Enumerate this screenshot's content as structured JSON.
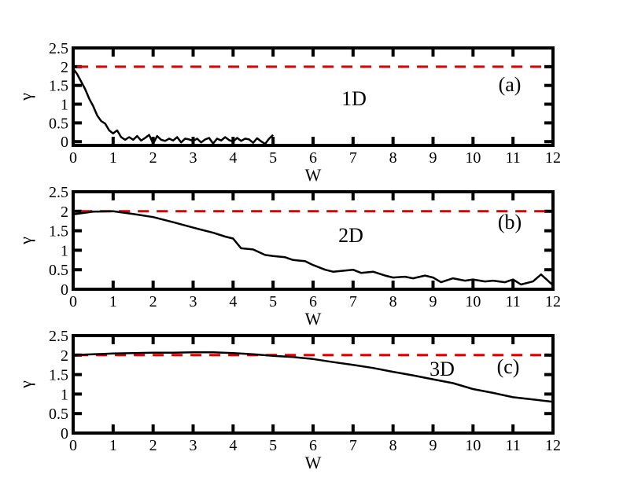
{
  "chart_data": [
    {
      "type": "line",
      "panel_label": "(a)",
      "dimension_label": "1D",
      "xlabel": "W",
      "ylabel": "γ",
      "xlim": [
        0,
        12
      ],
      "ylim": [
        -0.1,
        2.5
      ],
      "xticks": [
        0,
        1,
        2,
        3,
        4,
        5,
        6,
        7,
        8,
        9,
        10,
        11,
        12
      ],
      "yticks": [
        0,
        0.5,
        1,
        1.5,
        2,
        2.5
      ],
      "ytick_labels": [
        "0",
        "0.5",
        "1",
        "1.5",
        "2",
        "2.5"
      ],
      "reference": {
        "y": 2,
        "x_range": [
          0.1,
          11.8
        ],
        "color": "#e00000",
        "style": "dashed"
      },
      "series": [
        {
          "x": [
            0,
            0.1,
            0.2,
            0.3,
            0.4,
            0.5,
            0.6,
            0.7,
            0.8,
            0.9,
            1.0,
            1.1,
            1.2,
            1.3,
            1.4,
            1.5,
            1.6,
            1.7,
            1.8,
            1.9,
            2.0,
            2.1,
            2.2,
            2.3,
            2.4,
            2.5,
            2.6,
            2.7,
            2.8,
            2.9,
            3.0,
            3.1,
            3.2,
            3.3,
            3.4,
            3.5,
            3.6,
            3.7,
            3.8,
            3.9,
            4.0,
            4.1,
            4.2,
            4.3,
            4.4,
            4.5,
            4.6,
            4.7,
            4.8,
            4.9,
            5.0
          ],
          "y": [
            1.95,
            1.8,
            1.6,
            1.4,
            1.15,
            0.95,
            0.7,
            0.55,
            0.48,
            0.3,
            0.22,
            0.3,
            0.12,
            0.05,
            0.12,
            0.05,
            0.15,
            0.03,
            0.1,
            0.18,
            -0.05,
            0.15,
            0.05,
            0.02,
            0.08,
            0.03,
            0.12,
            -0.02,
            0.08,
            0.06,
            0.02,
            0.08,
            -0.02,
            0.06,
            0.1,
            -0.05,
            0.08,
            0.03,
            0.12,
            0.04,
            0.0,
            0.1,
            0.02,
            0.08,
            0.06,
            -0.03,
            0.09,
            0.01,
            -0.06,
            0.08,
            0.18
          ]
        }
      ]
    },
    {
      "type": "line",
      "panel_label": "(b)",
      "dimension_label": "2D",
      "xlabel": "W",
      "ylabel": "γ",
      "xlim": [
        0,
        12
      ],
      "ylim": [
        0,
        2.5
      ],
      "xticks": [
        0,
        1,
        2,
        3,
        4,
        5,
        6,
        7,
        8,
        9,
        10,
        11,
        12
      ],
      "yticks": [
        0,
        0.5,
        1,
        1.5,
        2,
        2.5
      ],
      "ytick_labels": [
        "0",
        "0.5",
        "1",
        "1.5",
        "2",
        "2.5"
      ],
      "reference": {
        "y": 2,
        "x_range": [
          0.2,
          11.8
        ],
        "color": "#e00000",
        "style": "dashed"
      },
      "series": [
        {
          "x": [
            0,
            0.5,
            1.0,
            1.5,
            2.0,
            2.5,
            3.0,
            3.5,
            3.8,
            4.0,
            4.2,
            4.5,
            4.8,
            5.0,
            5.3,
            5.5,
            5.8,
            6.0,
            6.3,
            6.5,
            6.8,
            7.0,
            7.2,
            7.5,
            7.8,
            8.0,
            8.3,
            8.5,
            8.8,
            9.0,
            9.2,
            9.5,
            9.8,
            10.0,
            10.3,
            10.5,
            10.8,
            11.0,
            11.2,
            11.5,
            11.7,
            12.0
          ],
          "y": [
            1.92,
            1.99,
            2.0,
            1.93,
            1.85,
            1.72,
            1.58,
            1.45,
            1.35,
            1.3,
            1.05,
            1.02,
            0.88,
            0.85,
            0.82,
            0.75,
            0.72,
            0.62,
            0.5,
            0.45,
            0.48,
            0.5,
            0.42,
            0.45,
            0.35,
            0.3,
            0.32,
            0.28,
            0.35,
            0.3,
            0.18,
            0.28,
            0.22,
            0.25,
            0.2,
            0.22,
            0.18,
            0.25,
            0.12,
            0.2,
            0.38,
            0.1
          ]
        }
      ]
    },
    {
      "type": "line",
      "panel_label": "(c)",
      "dimension_label": "3D",
      "xlabel": "W",
      "ylabel": "γ",
      "xlim": [
        0,
        12
      ],
      "ylim": [
        0,
        2.5
      ],
      "xticks": [
        0,
        1,
        2,
        3,
        4,
        5,
        6,
        7,
        8,
        9,
        10,
        11,
        12
      ],
      "yticks": [
        0,
        0.5,
        1,
        1.5,
        2,
        2.5
      ],
      "ytick_labels": [
        "0",
        "0.5",
        "1",
        "1.5",
        "2",
        "2.5"
      ],
      "reference": {
        "y": 2,
        "x_range": [
          0.1,
          11.8
        ],
        "color": "#e00000",
        "style": "dashed"
      },
      "series": [
        {
          "x": [
            0,
            0.5,
            1.0,
            1.5,
            2.0,
            2.5,
            3.0,
            3.5,
            4.0,
            4.5,
            5.0,
            5.5,
            6.0,
            6.5,
            7.0,
            7.5,
            8.0,
            8.5,
            9.0,
            9.5,
            10.0,
            10.5,
            11.0,
            11.5,
            12.0
          ],
          "y": [
            2.0,
            2.02,
            2.04,
            2.05,
            2.06,
            2.06,
            2.07,
            2.07,
            2.05,
            2.02,
            1.98,
            1.95,
            1.9,
            1.82,
            1.75,
            1.67,
            1.57,
            1.48,
            1.38,
            1.28,
            1.13,
            1.03,
            0.92,
            0.86,
            0.8
          ]
        }
      ]
    }
  ]
}
